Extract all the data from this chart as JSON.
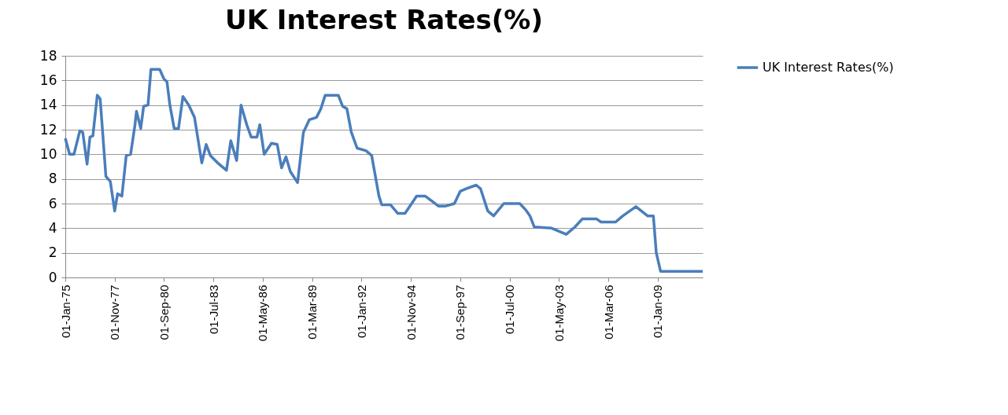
{
  "chart_data": {
    "type": "line",
    "title": "UK Interest Rates(%)",
    "x": [
      "1975-01",
      "1975-04",
      "1975-07",
      "1975-11",
      "1976-01",
      "1976-04",
      "1976-06",
      "1976-08",
      "1976-11",
      "1977-01",
      "1977-05",
      "1977-08",
      "1977-11",
      "1978-01",
      "1978-04",
      "1978-07",
      "1978-10",
      "1979-01",
      "1979-02",
      "1979-05",
      "1979-07",
      "1979-10",
      "1979-12",
      "1980-06",
      "1980-09",
      "1980-11",
      "1981-01",
      "1981-04",
      "1981-07",
      "1981-10",
      "1982-02",
      "1982-06",
      "1982-11",
      "1983-02",
      "1983-05",
      "1983-10",
      "1984-04",
      "1984-07",
      "1984-11",
      "1985-02",
      "1985-06",
      "1985-09",
      "1986-01",
      "1986-03",
      "1986-06",
      "1986-11",
      "1987-03",
      "1987-06",
      "1987-09",
      "1987-12",
      "1988-05",
      "1988-09",
      "1989-01",
      "1989-06",
      "1989-09",
      "1989-12",
      "1990-09",
      "1990-12",
      "1991-03",
      "1991-06",
      "1991-10",
      "1992-04",
      "1992-08",
      "1993-01",
      "1993-03",
      "1993-09",
      "1994-02",
      "1994-07",
      "1995-03",
      "1995-09",
      "1996-06",
      "1996-11",
      "1997-05",
      "1997-09",
      "1998-01",
      "1998-08",
      "1998-11",
      "1999-04",
      "1999-08",
      "2000-03",
      "2001-02",
      "2001-06",
      "2001-09",
      "2001-12",
      "2002-12",
      "2003-10",
      "2004-04",
      "2004-09",
      "2005-07",
      "2005-10",
      "2006-08",
      "2007-01",
      "2007-10",
      "2008-06",
      "2008-10",
      "2008-12",
      "2009-03",
      "2011-08"
    ],
    "series": [
      {
        "name": "UK Interest Rates(%)",
        "color": "#4a7ebb",
        "values": [
          11.3,
          10,
          10,
          11.9,
          11.8,
          9.2,
          11.4,
          11.5,
          14.8,
          14.5,
          8.2,
          7.8,
          5.4,
          6.8,
          6.6,
          9.9,
          10,
          12.4,
          13.5,
          12.1,
          13.9,
          14,
          16.9,
          16.9,
          16.1,
          15.9,
          14,
          12.1,
          12.1,
          14.7,
          14,
          13,
          9.3,
          10.8,
          9.9,
          9.3,
          8.7,
          11.1,
          9.5,
          14,
          12.4,
          11.4,
          11.4,
          12.4,
          10,
          10.9,
          10.8,
          8.9,
          9.8,
          8.6,
          7.7,
          11.8,
          12.8,
          13,
          13.7,
          14.8,
          14.8,
          13.9,
          13.7,
          11.8,
          10.5,
          10.3,
          9.9,
          6.6,
          5.9,
          5.9,
          5.2,
          5.2,
          6.6,
          6.6,
          5.8,
          5.8,
          6,
          7,
          7.2,
          7.5,
          7.2,
          5.4,
          5,
          6,
          6,
          5.5,
          5,
          4.1,
          4,
          3.5,
          4.1,
          4.75,
          4.75,
          4.5,
          4.5,
          5,
          5.75,
          5,
          5,
          2,
          0.5,
          0.5
        ]
      }
    ],
    "xlim": [
      "1975-01",
      "2011-08"
    ],
    "xticks": [
      {
        "value": "1975-01",
        "label": "01-Jan-75"
      },
      {
        "value": "1977-11",
        "label": "01-Nov-77"
      },
      {
        "value": "1980-09",
        "label": "01-Sep-80"
      },
      {
        "value": "1983-07",
        "label": "01-Jul-83"
      },
      {
        "value": "1986-05",
        "label": "01-May-86"
      },
      {
        "value": "1989-03",
        "label": "01-Mar-89"
      },
      {
        "value": "1992-01",
        "label": "01-Jan-92"
      },
      {
        "value": "1994-11",
        "label": "01-Nov-94"
      },
      {
        "value": "1997-09",
        "label": "01-Sep-97"
      },
      {
        "value": "2000-07",
        "label": "01-Jul-00"
      },
      {
        "value": "2003-05",
        "label": "01-May-03"
      },
      {
        "value": "2006-03",
        "label": "01-Mar-06"
      },
      {
        "value": "2009-01",
        "label": "01-Jan-09"
      }
    ],
    "ylim": [
      0,
      18
    ],
    "yticks": [
      0,
      2,
      4,
      6,
      8,
      10,
      12,
      14,
      16,
      18
    ],
    "grid": "y",
    "legend": "right",
    "line_style": "solid"
  }
}
